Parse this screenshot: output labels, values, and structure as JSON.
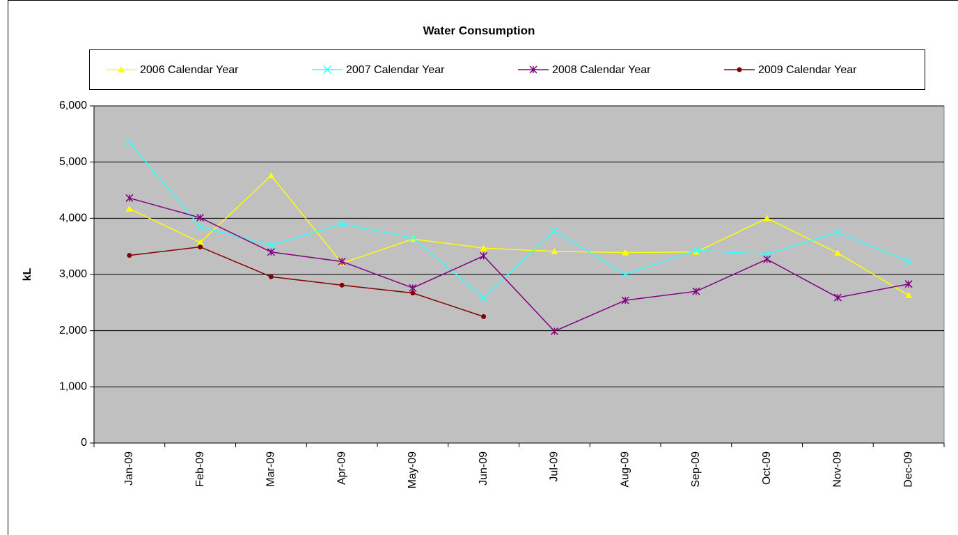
{
  "chart_data": {
    "type": "line",
    "title": "Water Consumption",
    "y_label": "kL",
    "categories": [
      "Jan-09",
      "Feb-09",
      "Mar-09",
      "Apr-09",
      "May-09",
      "Jun-09",
      "Jul-09",
      "Aug-09",
      "Sep-09",
      "Oct-09",
      "Nov-09",
      "Dec-09"
    ],
    "series": [
      {
        "name": "2006 Calendar Year",
        "color": "#ffff00",
        "marker": "triangle",
        "values": [
          4170,
          3570,
          4760,
          3200,
          3630,
          3470,
          3410,
          3390,
          3400,
          4000,
          3380,
          2630
        ]
      },
      {
        "name": "2007 Calendar Year",
        "color": "#33ffff",
        "marker": "x",
        "values": [
          5350,
          3850,
          3520,
          3900,
          3650,
          2590,
          3780,
          3000,
          3430,
          3360,
          3750,
          3230
        ]
      },
      {
        "name": "2008 Calendar Year",
        "color": "#800080",
        "marker": "star",
        "values": [
          4360,
          4010,
          3400,
          3230,
          2760,
          3330,
          1990,
          2540,
          2700,
          3270,
          2590,
          2830
        ]
      },
      {
        "name": "2009 Calendar Year",
        "color": "#800000",
        "marker": "circle",
        "values": [
          3340,
          3490,
          2960,
          2810,
          2670,
          2250,
          null,
          null,
          null,
          null,
          null,
          null
        ]
      }
    ],
    "ylim": [
      0,
      6000
    ],
    "yticks": [
      0,
      {
        "value": 1000,
        "label": "1,000"
      },
      {
        "value": 2000,
        "label": "2,000"
      },
      {
        "value": 3000,
        "label": "3,000"
      },
      {
        "value": 4000,
        "label": "4,000"
      },
      {
        "value": 5000,
        "label": "5,000"
      },
      {
        "value": 6000,
        "label": "6,000"
      }
    ],
    "grid": true,
    "legend": "top",
    "plot_background": "#c0c0c0"
  }
}
